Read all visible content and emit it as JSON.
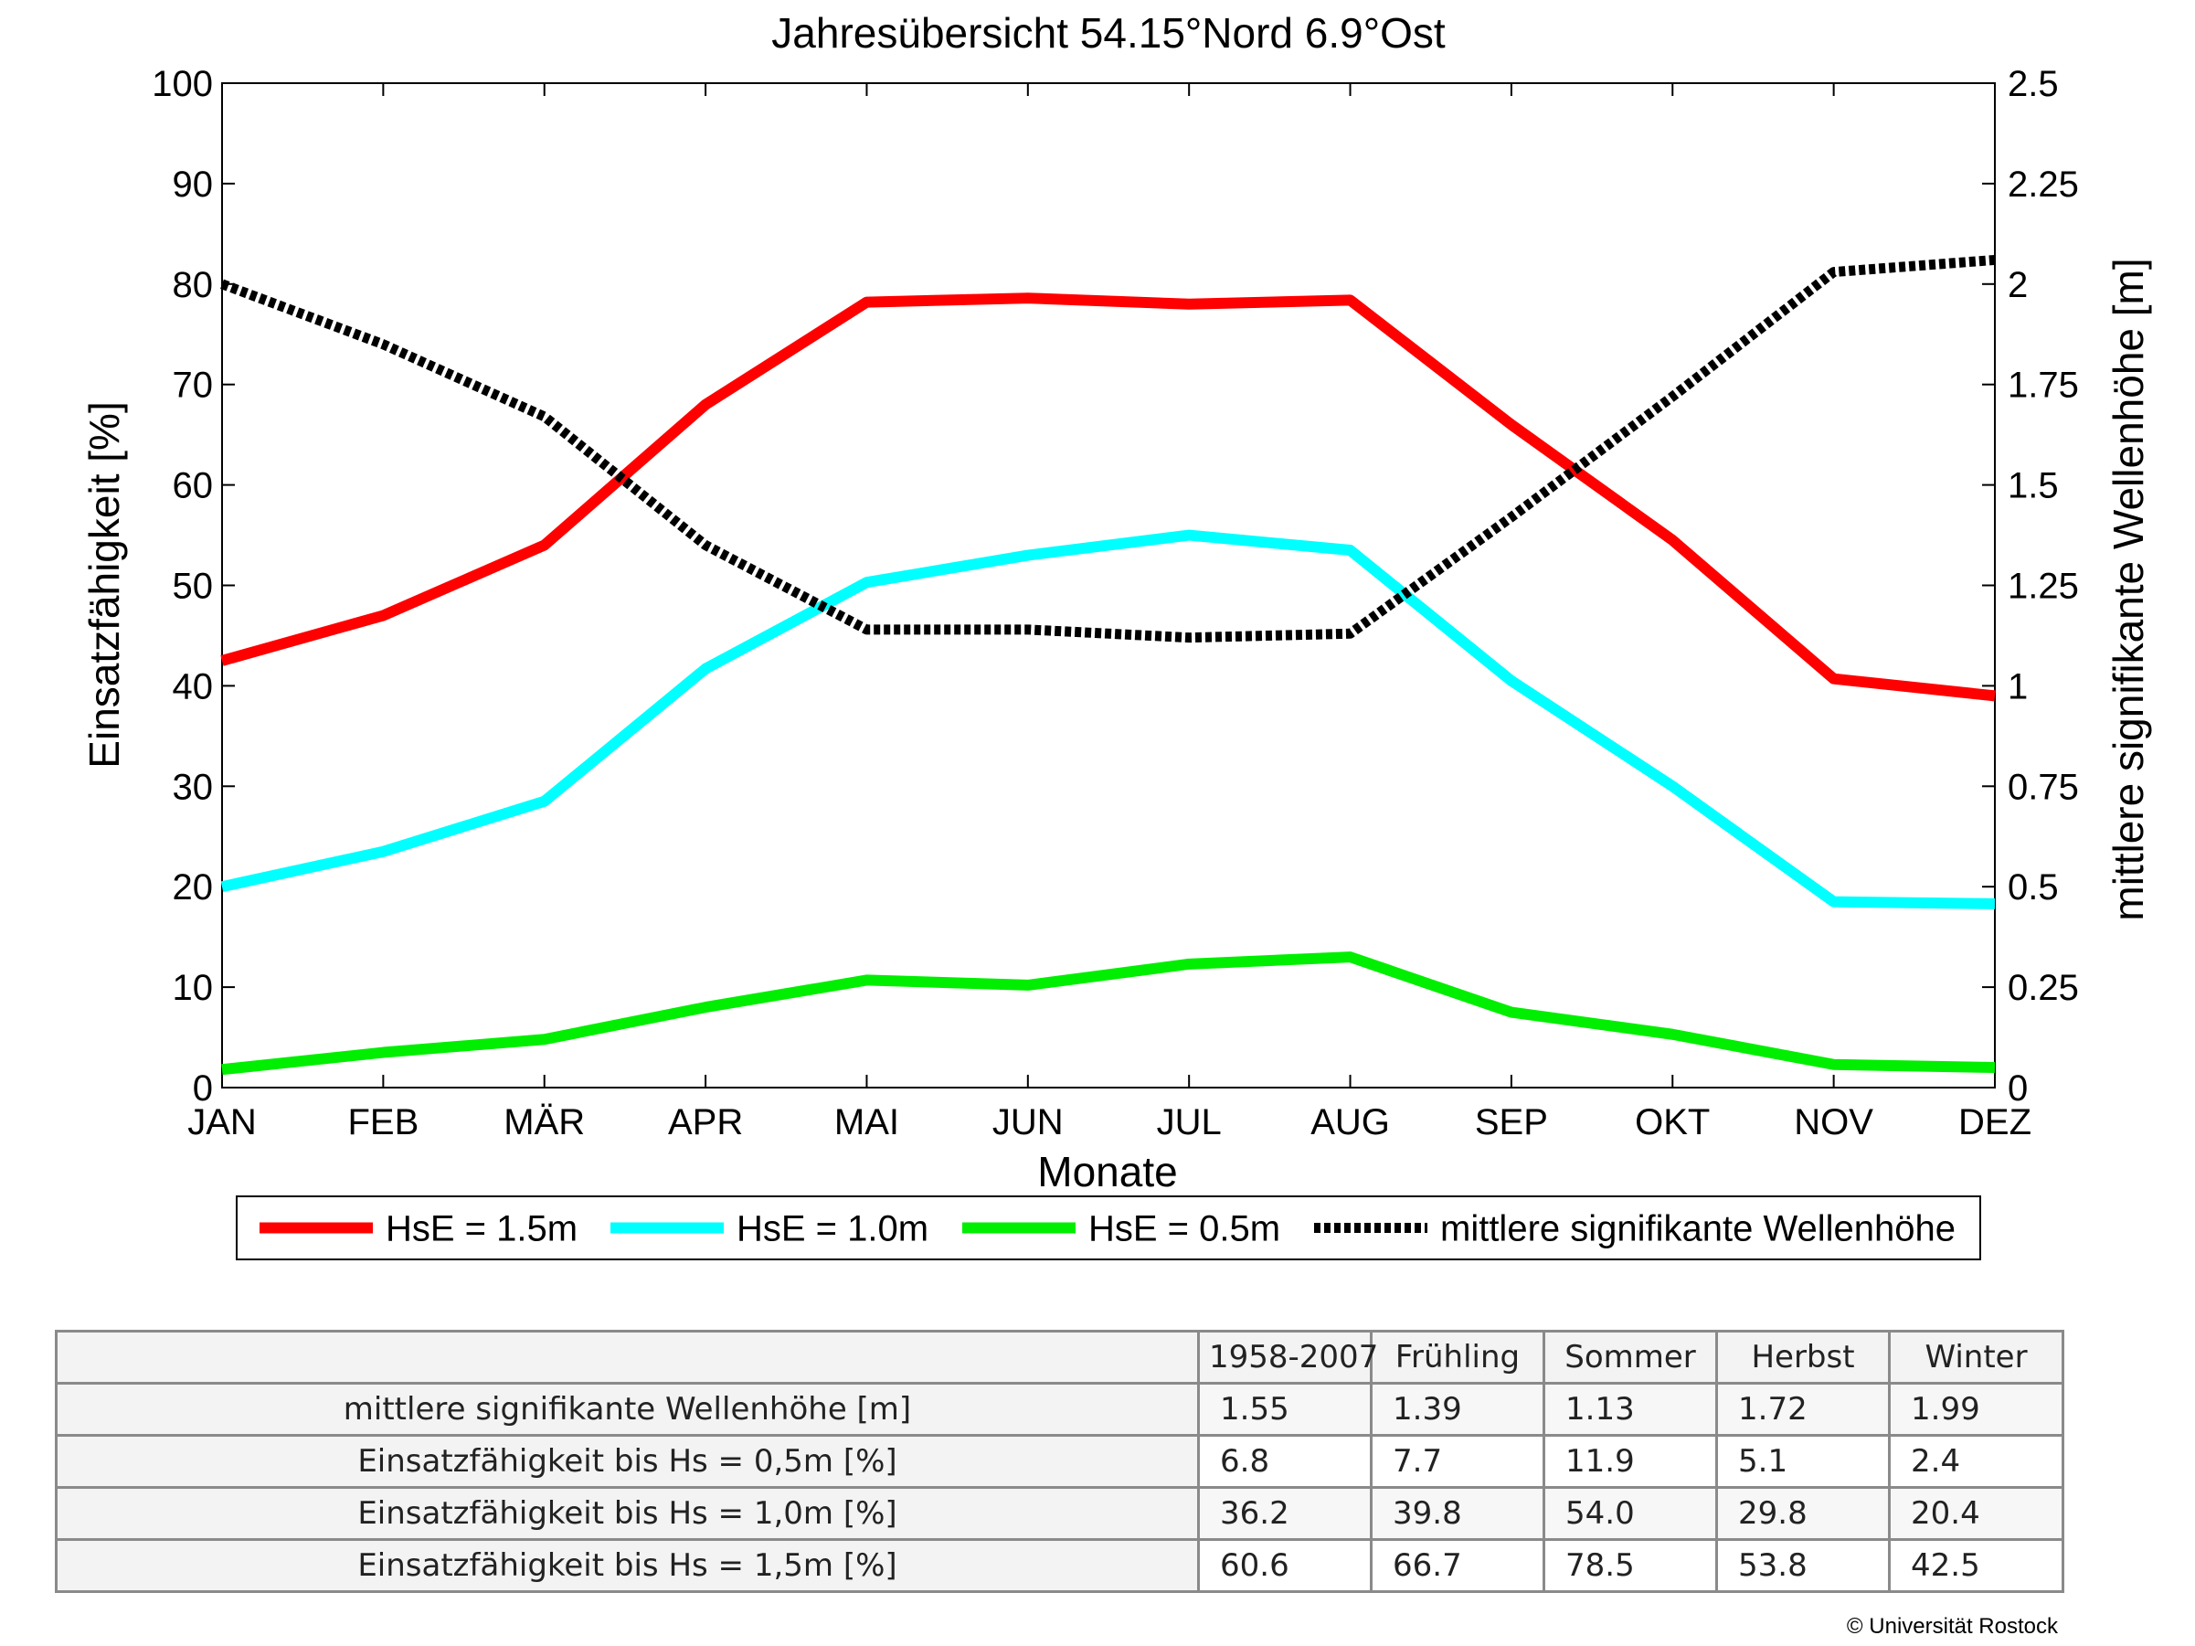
{
  "chart_data": {
    "type": "line",
    "title": "Jahresübersicht  54.15°Nord  6.9°Ost",
    "xlabel": "Monate",
    "ylabel_left": "Einsatzfähigkeit [%]",
    "ylabel_right": "mittlere signifikante Wellenhöhe [m]",
    "categories": [
      "JAN",
      "FEB",
      "MÄR",
      "APR",
      "MAI",
      "JUN",
      "JUL",
      "AUG",
      "SEP",
      "OKT",
      "NOV",
      "DEZ"
    ],
    "ylim_left": [
      0,
      100
    ],
    "yticks_left": [
      "0",
      "10",
      "20",
      "30",
      "40",
      "50",
      "60",
      "70",
      "80",
      "90",
      "100"
    ],
    "ylim_right": [
      0,
      2.5
    ],
    "yticks_right": [
      "0",
      "0.25",
      "0.5",
      "0.75",
      "1",
      "1.25",
      "1.5",
      "1.75",
      "2",
      "2.25",
      "2.5"
    ],
    "grid": false,
    "legend_position": "bottom",
    "series": [
      {
        "name": "HsE = 1.5m",
        "axis": "left",
        "color": "#ff0000",
        "style": "solid",
        "values": [
          42.5,
          47,
          54,
          68,
          78.2,
          78.6,
          78,
          78.4,
          66,
          54.5,
          40.7,
          39
        ]
      },
      {
        "name": "HsE = 1.0m",
        "axis": "left",
        "color": "#00ffff",
        "style": "solid",
        "values": [
          20,
          23.5,
          28.5,
          41.7,
          50.3,
          53,
          55,
          53.5,
          40.5,
          30,
          18.5,
          18.3
        ]
      },
      {
        "name": "HsE = 0.5m",
        "axis": "left",
        "color": "#00ee00",
        "style": "solid",
        "values": [
          1.8,
          3.5,
          4.8,
          8,
          10.7,
          10.2,
          12.3,
          13,
          7.5,
          5.3,
          2.3,
          2
        ]
      },
      {
        "name": "mittlere signifikante Wellenhöhe",
        "axis": "right",
        "color": "#000000",
        "style": "dotted",
        "values": [
          2.0,
          1.85,
          1.67,
          1.35,
          1.14,
          1.14,
          1.12,
          1.13,
          1.42,
          1.72,
          2.03,
          2.06
        ]
      }
    ]
  },
  "table": {
    "columns": [
      "1958-2007",
      "Frühling",
      "Sommer",
      "Herbst",
      "Winter"
    ],
    "rows": [
      {
        "label": "mittlere signifikante Wellenhöhe [m]",
        "values": [
          "1.55",
          "1.39",
          "1.13",
          "1.72",
          "1.99"
        ]
      },
      {
        "label": "Einsatzfähigkeit bis Hs = 0,5m [%]",
        "values": [
          "6.8",
          "7.7",
          "11.9",
          "5.1",
          "2.4"
        ]
      },
      {
        "label": "Einsatzfähigkeit bis Hs = 1,0m [%]",
        "values": [
          "36.2",
          "39.8",
          "54.0",
          "29.8",
          "20.4"
        ]
      },
      {
        "label": "Einsatzfähigkeit bis Hs = 1,5m [%]",
        "values": [
          "60.6",
          "66.7",
          "78.5",
          "53.8",
          "42.5"
        ]
      }
    ]
  },
  "copyright": "© Universität Rostock"
}
